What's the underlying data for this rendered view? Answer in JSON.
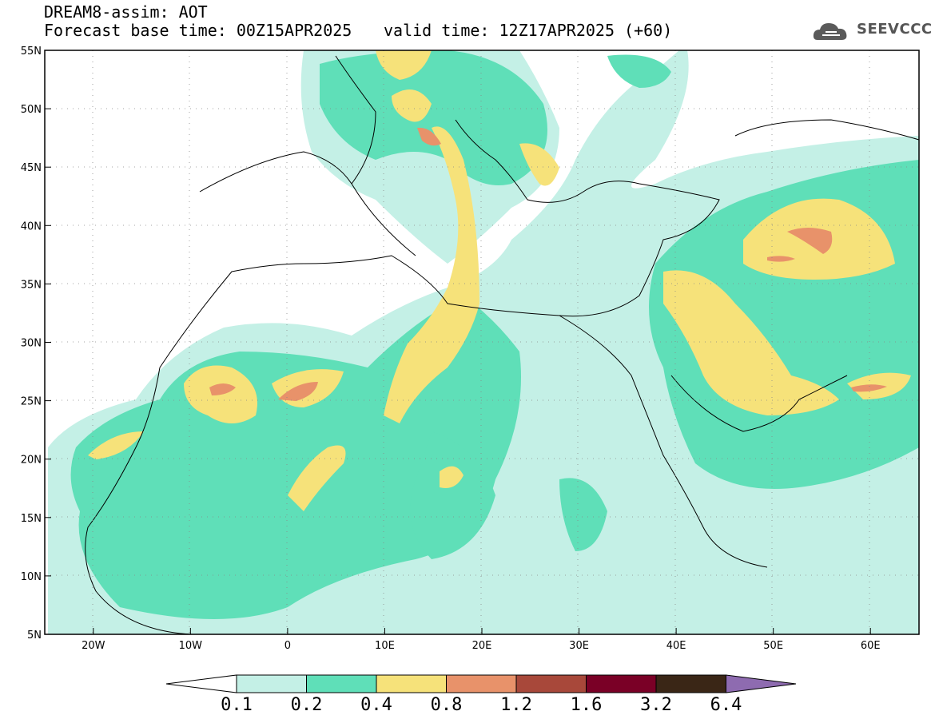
{
  "header": {
    "title": "DREAM8-assim: AOT",
    "base_time": "Forecast base time: 00Z15APR2025",
    "valid_time": "valid time: 12Z17APR2025 (+60)"
  },
  "logo": {
    "text": "SEEVCCC",
    "icon": "cloud-icon"
  },
  "map": {
    "lon_range": [
      -25,
      65
    ],
    "lat_range": [
      5,
      55
    ],
    "lon_ticks": [
      "20W",
      "10W",
      "0",
      "10E",
      "20E",
      "30E",
      "40E",
      "50E",
      "60E"
    ],
    "lat_ticks": [
      "55N",
      "50N",
      "45N",
      "40N",
      "35N",
      "30N",
      "25N",
      "20N",
      "15N",
      "10N",
      "5N"
    ],
    "gridlines": "dotted"
  },
  "colorbar": {
    "labels": [
      "0.1",
      "0.2",
      "0.4",
      "0.8",
      "1.2",
      "1.6",
      "3.2",
      "6.4"
    ],
    "colors": [
      "#ffffff",
      "#c4f0e6",
      "#5fdfb8",
      "#f6e27a",
      "#e8926a",
      "#a8483a",
      "#7a0026",
      "#3a2616",
      "#8e6bb0"
    ]
  },
  "colors": {
    "aot_01": "#c4f0e6",
    "aot_02": "#5fdfb8",
    "aot_04": "#f6e27a",
    "aot_08": "#e8926a"
  }
}
